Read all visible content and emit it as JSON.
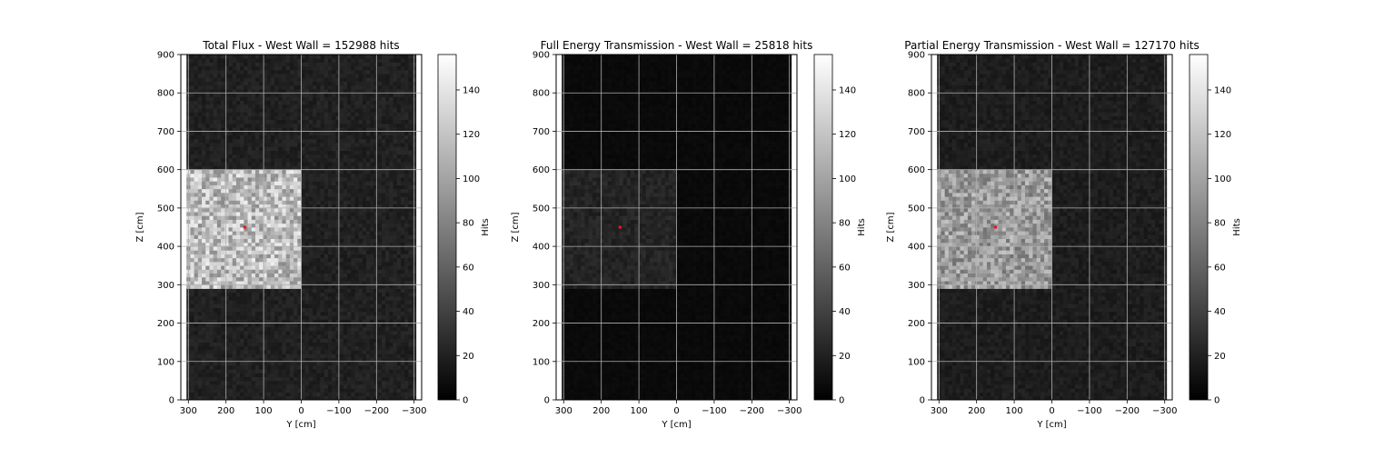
{
  "figure": {
    "background": "#ffffff"
  },
  "colormap": {
    "name": "gray",
    "low": "#000000",
    "high": "#ffffff",
    "marker_color": "#e31a1c"
  },
  "chart_data": [
    {
      "type": "heatmap",
      "title": "Total Flux - West Wall = 152988 hits",
      "xlabel": "Y [cm]",
      "ylabel": "Z [cm]",
      "xlim": [
        320,
        -320
      ],
      "ylim": [
        0,
        900
      ],
      "xticks": [
        300,
        200,
        100,
        0,
        -100,
        -200,
        -300
      ],
      "xtick_labels": [
        "300",
        "200",
        "100",
        "0",
        "−100",
        "−200",
        "−300"
      ],
      "yticks": [
        0,
        100,
        200,
        300,
        400,
        500,
        600,
        700,
        800,
        900
      ],
      "ytick_labels": [
        "0",
        "100",
        "200",
        "300",
        "400",
        "500",
        "600",
        "700",
        "800",
        "900"
      ],
      "grid": true,
      "data_extent": {
        "y": [
          305,
          -305
        ],
        "z": [
          0,
          900
        ]
      },
      "bright_region": {
        "y": [
          305,
          0
        ],
        "z": [
          295,
          595
        ],
        "mean_hits": 115
      },
      "background_mean_hits": 20,
      "marker": {
        "y": 150,
        "z": 450
      },
      "colorbar": {
        "label": "Hits",
        "min": 0,
        "max": 156,
        "ticks": [
          0,
          20,
          40,
          60,
          80,
          100,
          120,
          140
        ]
      }
    },
    {
      "type": "heatmap",
      "title": "Full Energy Transmission - West Wall = 25818 hits",
      "xlabel": "Y [cm]",
      "ylabel": "Z [cm]",
      "xlim": [
        320,
        -320
      ],
      "ylim": [
        0,
        900
      ],
      "xticks": [
        300,
        200,
        100,
        0,
        -100,
        -200,
        -300
      ],
      "xtick_labels": [
        "300",
        "200",
        "100",
        "0",
        "−100",
        "−200",
        "−300"
      ],
      "yticks": [
        0,
        100,
        200,
        300,
        400,
        500,
        600,
        700,
        800,
        900
      ],
      "ytick_labels": [
        "0",
        "100",
        "200",
        "300",
        "400",
        "500",
        "600",
        "700",
        "800",
        "900"
      ],
      "grid": true,
      "data_extent": {
        "y": [
          305,
          -305
        ],
        "z": [
          0,
          900
        ]
      },
      "bright_region": {
        "y": [
          305,
          0
        ],
        "z": [
          295,
          595
        ],
        "mean_hits": 22
      },
      "background_mean_hits": 6,
      "marker": {
        "y": 150,
        "z": 450
      },
      "colorbar": {
        "label": "Hits",
        "min": 0,
        "max": 156,
        "ticks": [
          0,
          20,
          40,
          60,
          80,
          100,
          120,
          140
        ]
      }
    },
    {
      "type": "heatmap",
      "title": "Partial Energy Transmission - West Wall = 127170 hits",
      "xlabel": "Y [cm]",
      "ylabel": "Z [cm]",
      "xlim": [
        320,
        -320
      ],
      "ylim": [
        0,
        900
      ],
      "xticks": [
        300,
        200,
        100,
        0,
        -100,
        -200,
        -300
      ],
      "xtick_labels": [
        "300",
        "200",
        "100",
        "0",
        "−100",
        "−200",
        "−300"
      ],
      "yticks": [
        0,
        100,
        200,
        300,
        400,
        500,
        600,
        700,
        800,
        900
      ],
      "ytick_labels": [
        "0",
        "100",
        "200",
        "300",
        "400",
        "500",
        "600",
        "700",
        "800",
        "900"
      ],
      "grid": true,
      "data_extent": {
        "y": [
          305,
          -305
        ],
        "z": [
          0,
          900
        ]
      },
      "bright_region": {
        "y": [
          305,
          0
        ],
        "z": [
          295,
          595
        ],
        "mean_hits": 95
      },
      "background_mean_hits": 18,
      "marker": {
        "y": 150,
        "z": 450
      },
      "colorbar": {
        "label": "Hits",
        "min": 0,
        "max": 156,
        "ticks": [
          0,
          20,
          40,
          60,
          80,
          100,
          120,
          140
        ]
      }
    }
  ]
}
